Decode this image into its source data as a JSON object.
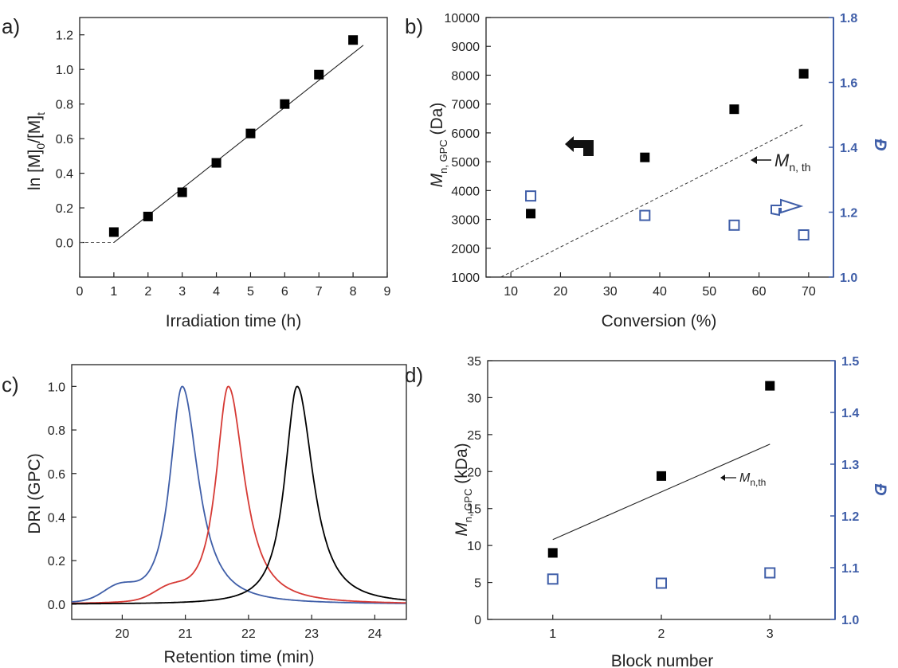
{
  "colors": {
    "axis": "#222222",
    "secondary_axis": "#3f5ea8",
    "marker_fill": "#000000",
    "marker_open": "#3f5ea8",
    "trace_blue": "#3f5ea8",
    "trace_red": "#d63a35",
    "trace_black": "#000000"
  },
  "chart_data": [
    {
      "panel": "a)",
      "type": "scatter",
      "xlabel": "Irradiation time (h)",
      "ylabel_main": "ln [M]",
      "ylabel_sub0": "0",
      "ylabel_mid": "/[M]",
      "ylabel_sub1": "t",
      "xlim": [
        0,
        9
      ],
      "ylim": [
        -0.2,
        1.3
      ],
      "xticks": [
        "0",
        "1",
        "2",
        "3",
        "4",
        "5",
        "6",
        "7",
        "8",
        "9"
      ],
      "yticks": [
        "0.0",
        "0.2",
        "0.4",
        "0.6",
        "0.8",
        "1.0",
        "1.2"
      ],
      "grid": false,
      "series": [
        {
          "marker": "filled-square",
          "x": [
            1,
            2,
            3,
            4,
            5,
            6,
            7,
            8
          ],
          "y": [
            0.06,
            0.15,
            0.29,
            0.46,
            0.63,
            0.8,
            0.97,
            1.17
          ]
        }
      ],
      "fit_line": {
        "x": [
          1,
          8.3
        ],
        "y": [
          0.0,
          1.14
        ]
      },
      "dashed_line": {
        "x": [
          0,
          1
        ],
        "y": [
          0,
          0
        ]
      }
    },
    {
      "panel": "b)",
      "type": "scatter",
      "xlabel": "Conversion (%)",
      "ylabel_left_main": "M",
      "ylabel_left_sub": "n, GPC",
      "ylabel_left_unit": " (Da)",
      "ylabel_right": "Đ",
      "xlim": [
        5,
        75
      ],
      "ylim_left": [
        1000,
        10000
      ],
      "ylim_right": [
        1.0,
        1.8
      ],
      "xticks": [
        "10",
        "20",
        "30",
        "40",
        "50",
        "60",
        "70"
      ],
      "yticks_left": [
        "1000",
        "2000",
        "3000",
        "4000",
        "5000",
        "6000",
        "7000",
        "8000",
        "9000",
        "10000"
      ],
      "yticks_right": [
        "1.0",
        "1.2",
        "1.4",
        "1.6",
        "1.8"
      ],
      "series": [
        {
          "axis": "left",
          "marker": "filled-square",
          "x": [
            14,
            37,
            55,
            69
          ],
          "y": [
            3200,
            5150,
            6820,
            8050
          ]
        },
        {
          "axis": "right",
          "marker": "open-square",
          "x": [
            14,
            37,
            55,
            69
          ],
          "y": [
            1.25,
            1.19,
            1.16,
            1.13
          ]
        }
      ],
      "theory_line": {
        "style": "dashed",
        "x": [
          8,
          69
        ],
        "y": [
          1000,
          6300
        ]
      },
      "annotation_main": "M",
      "annotation_sub": "n, th"
    },
    {
      "panel": "c)",
      "type": "line",
      "xlabel": "Retention time (min)",
      "ylabel": "DRI (GPC)",
      "xlim": [
        19.2,
        24.5
      ],
      "ylim": [
        -0.07,
        1.1
      ],
      "xticks": [
        "20",
        "21",
        "22",
        "23",
        "24"
      ],
      "yticks": [
        "0.0",
        "0.2",
        "0.4",
        "0.6",
        "0.8",
        "1.0"
      ],
      "series": [
        {
          "color": "blue",
          "peak_x": 20.95,
          "shoulder_x": 19.95,
          "shoulder_height": 0.06
        },
        {
          "color": "red",
          "peak_x": 21.68,
          "shoulder_x": 20.75,
          "shoulder_height": 0.05
        },
        {
          "color": "black",
          "peak_x": 22.77,
          "shoulder_x": null,
          "shoulder_height": 0
        }
      ]
    },
    {
      "panel": "d)",
      "type": "scatter",
      "xlabel": "Block number",
      "ylabel_left_main": "M",
      "ylabel_left_sub": "n, GPC",
      "ylabel_left_unit": " (kDa)",
      "ylabel_right": "Đ",
      "xlim": [
        0.4,
        3.6
      ],
      "ylim_left": [
        0,
        35
      ],
      "ylim_right": [
        1.0,
        1.5
      ],
      "xticks": [
        "1",
        "2",
        "3"
      ],
      "yticks_left": [
        "0",
        "5",
        "10",
        "15",
        "20",
        "25",
        "30",
        "35"
      ],
      "yticks_right": [
        "1.0",
        "1.1",
        "1.2",
        "1.3",
        "1.4",
        "1.5"
      ],
      "series": [
        {
          "axis": "left",
          "marker": "filled-square",
          "x": [
            1,
            2,
            3
          ],
          "y": [
            9.0,
            19.4,
            31.6
          ]
        },
        {
          "axis": "right",
          "marker": "open-square",
          "x": [
            1,
            2,
            3
          ],
          "y": [
            1.078,
            1.07,
            1.09
          ]
        }
      ],
      "theory_line": {
        "style": "solid",
        "x": [
          1,
          3
        ],
        "y": [
          10.8,
          23.7
        ]
      },
      "annotation_main": "M",
      "annotation_sub": "n,th"
    }
  ]
}
